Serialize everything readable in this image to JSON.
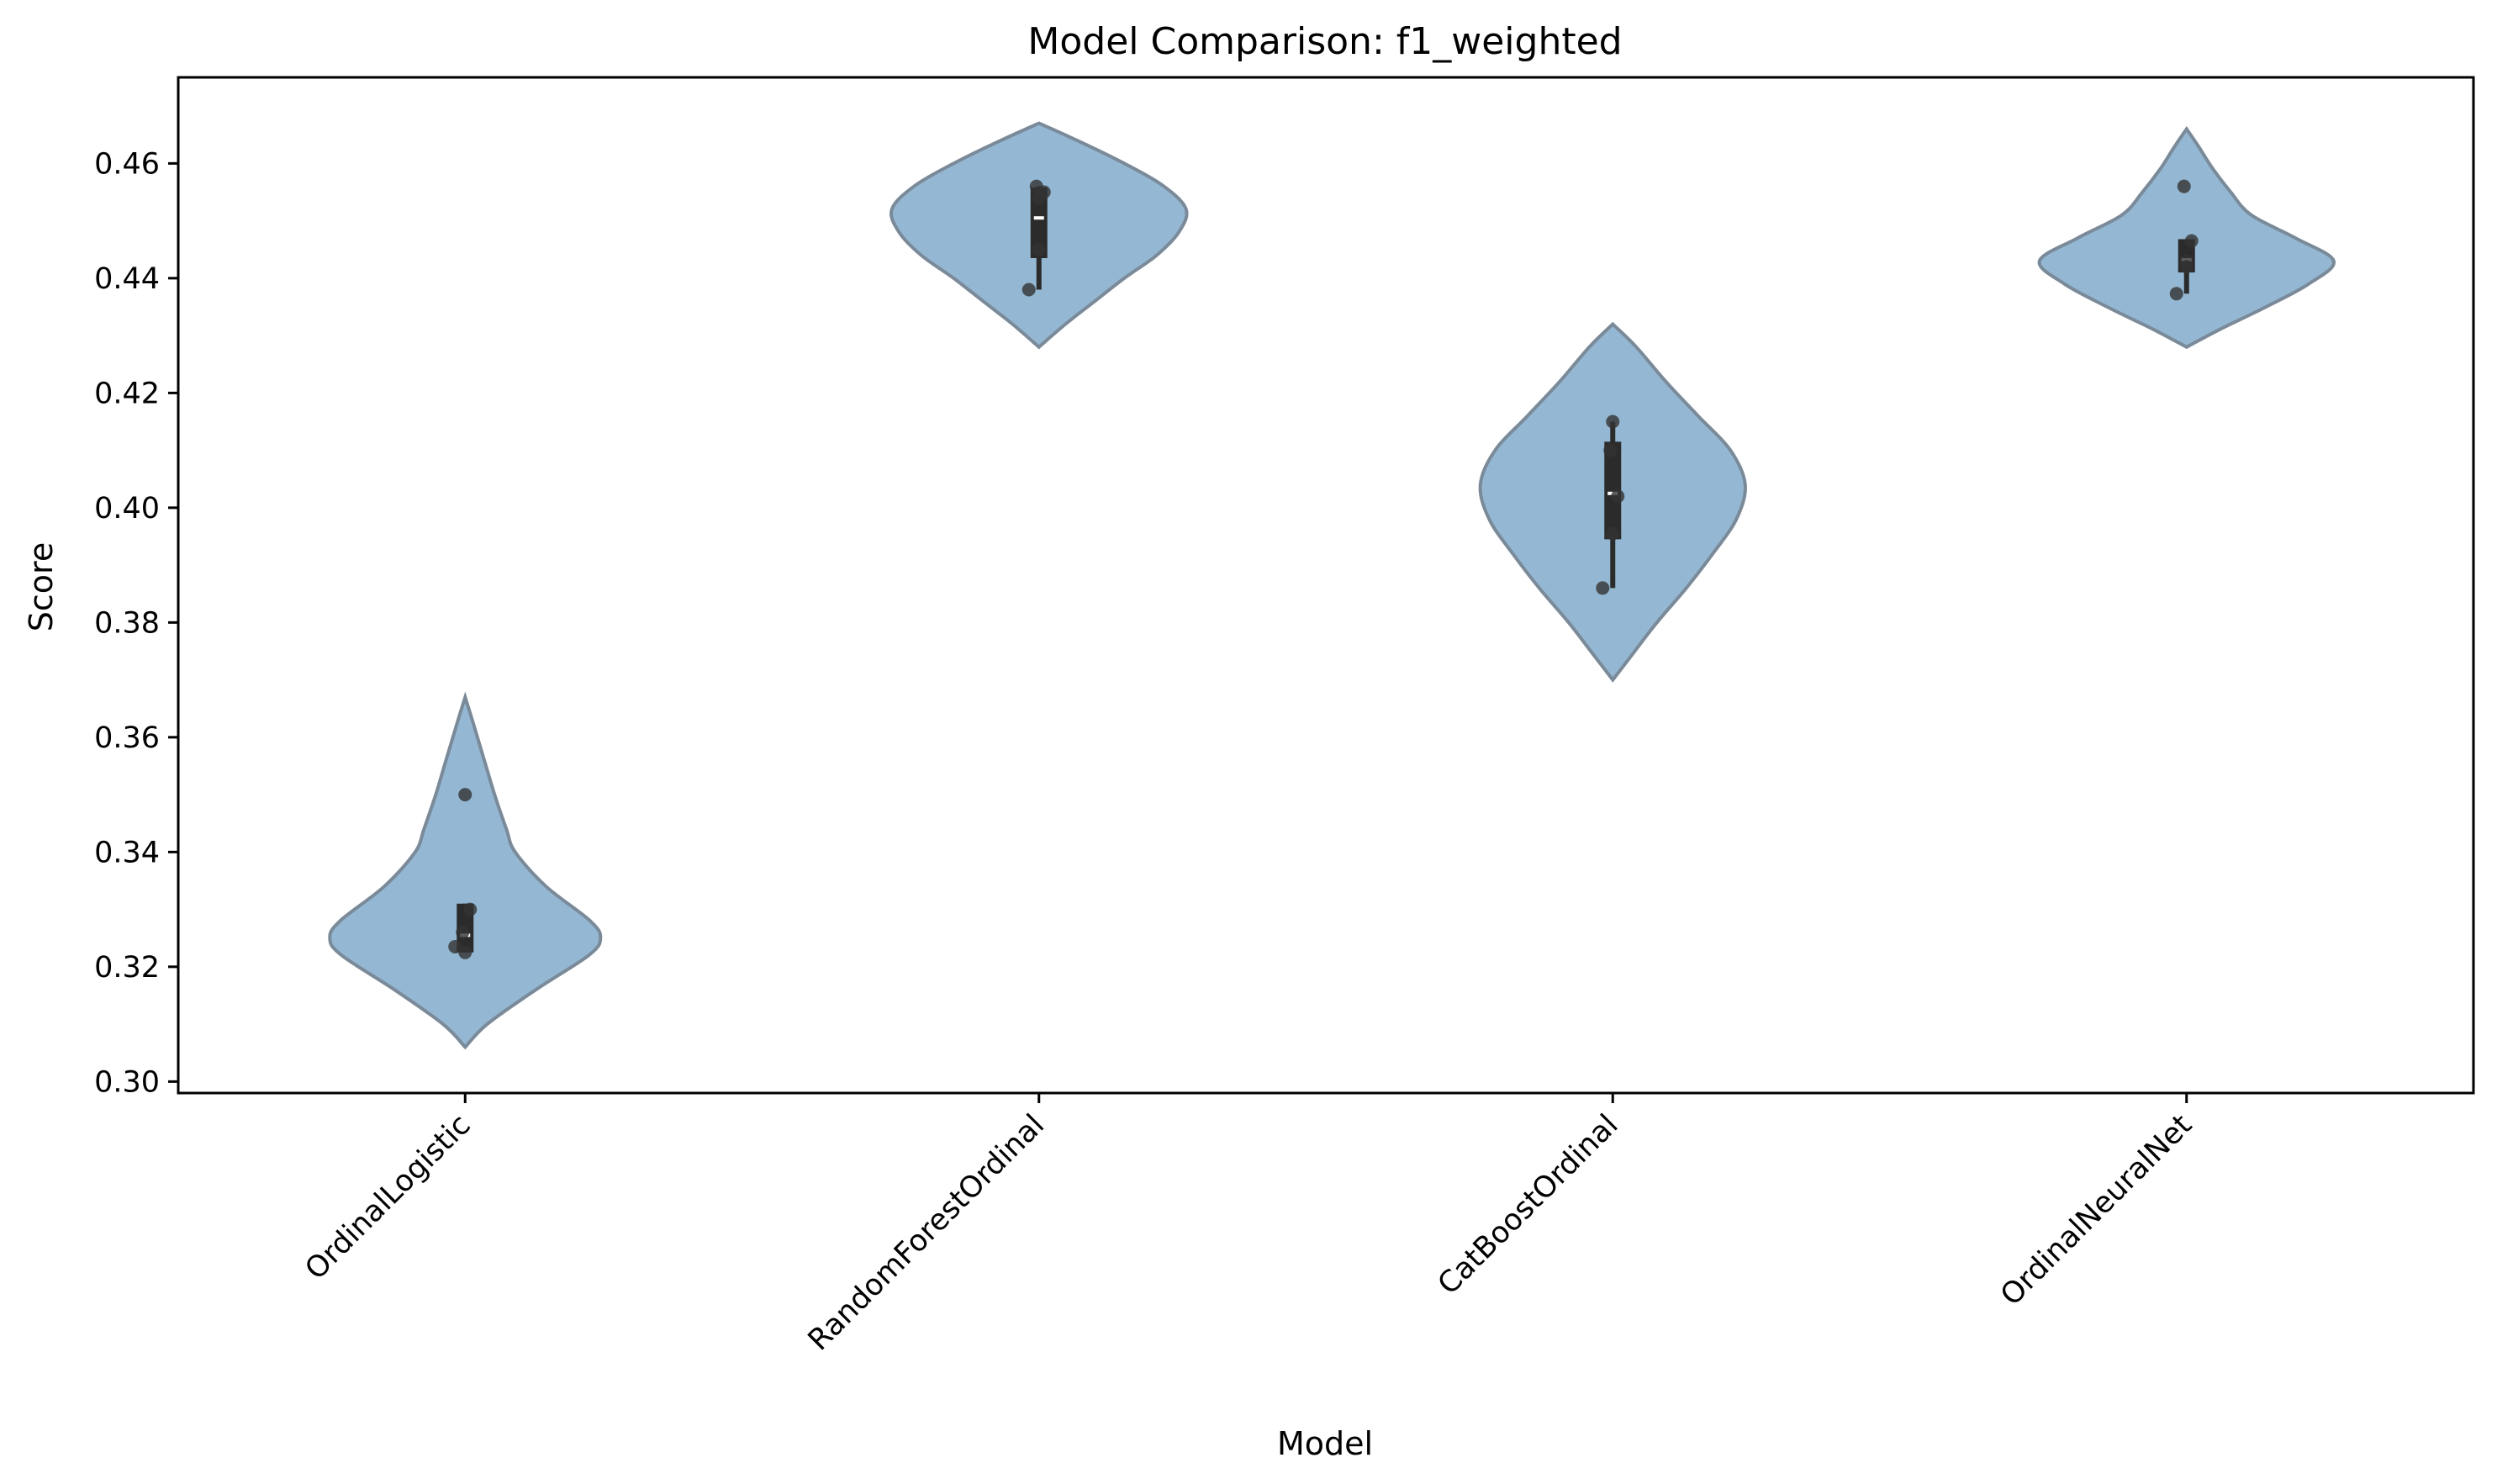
{
  "chart_data": {
    "type": "violin",
    "title": "Model Comparison: f1_weighted",
    "xlabel": "Model",
    "ylabel": "Score",
    "ylim": [
      0.298,
      0.475
    ],
    "yticks": [
      0.3,
      0.32,
      0.34,
      0.36,
      0.38,
      0.4,
      0.42,
      0.44,
      0.46
    ],
    "ytick_labels": [
      "0.30",
      "0.32",
      "0.34",
      "0.36",
      "0.38",
      "0.40",
      "0.42",
      "0.44",
      "0.46"
    ],
    "categories": [
      "OrdinalLogistic",
      "RandomForestOrdinal",
      "CatBoostOrdinal",
      "OrdinalNeuralNet"
    ],
    "violin_color": "#94b8d3",
    "violin_edge_color": "#7a8a99",
    "point_color": "#333333",
    "box_color": "#2b2b2b",
    "series": [
      {
        "category": "OrdinalLogistic",
        "points": [
          0.3235,
          0.3225,
          0.33,
          0.326,
          0.35
        ],
        "median": 0.3255,
        "q1": 0.3225,
        "q3": 0.331,
        "whisker_low": 0.3225,
        "whisker_high": 0.331,
        "density": [
          [
            0.306,
            0.0
          ],
          [
            0.31,
            0.15
          ],
          [
            0.316,
            0.48
          ],
          [
            0.322,
            0.84
          ],
          [
            0.325,
            0.92
          ],
          [
            0.328,
            0.85
          ],
          [
            0.334,
            0.55
          ],
          [
            0.34,
            0.34
          ],
          [
            0.344,
            0.28
          ],
          [
            0.35,
            0.2
          ],
          [
            0.356,
            0.13
          ],
          [
            0.362,
            0.06
          ],
          [
            0.367,
            0.0
          ]
        ]
      },
      {
        "category": "RandomForestOrdinal",
        "points": [
          0.438,
          0.445,
          0.455,
          0.456,
          0.454
        ],
        "median": 0.4505,
        "q1": 0.4435,
        "q3": 0.4558,
        "whisker_low": 0.438,
        "whisker_high": 0.456,
        "density": [
          [
            0.428,
            0.0
          ],
          [
            0.432,
            0.18
          ],
          [
            0.436,
            0.38
          ],
          [
            0.44,
            0.58
          ],
          [
            0.444,
            0.8
          ],
          [
            0.448,
            0.95
          ],
          [
            0.452,
            1.0
          ],
          [
            0.456,
            0.85
          ],
          [
            0.46,
            0.58
          ],
          [
            0.464,
            0.26
          ],
          [
            0.467,
            0.0
          ]
        ]
      },
      {
        "category": "CatBoostOrdinal",
        "points": [
          0.386,
          0.3955,
          0.402,
          0.41,
          0.415
        ],
        "median": 0.4025,
        "q1": 0.3945,
        "q3": 0.4115,
        "whisker_low": 0.386,
        "whisker_high": 0.415,
        "density": [
          [
            0.37,
            0.0
          ],
          [
            0.374,
            0.12
          ],
          [
            0.38,
            0.3
          ],
          [
            0.386,
            0.5
          ],
          [
            0.392,
            0.68
          ],
          [
            0.398,
            0.84
          ],
          [
            0.404,
            0.9
          ],
          [
            0.41,
            0.8
          ],
          [
            0.416,
            0.58
          ],
          [
            0.422,
            0.36
          ],
          [
            0.428,
            0.16
          ],
          [
            0.432,
            0.0
          ]
        ]
      },
      {
        "category": "OrdinalNeuralNet",
        "points": [
          0.4373,
          0.443,
          0.4465,
          0.456,
          0.442
        ],
        "median": 0.4432,
        "q1": 0.441,
        "q3": 0.4468,
        "whisker_low": 0.4373,
        "whisker_high": 0.4468,
        "density": [
          [
            0.428,
            0.0
          ],
          [
            0.431,
            0.22
          ],
          [
            0.435,
            0.54
          ],
          [
            0.439,
            0.83
          ],
          [
            0.443,
            1.0
          ],
          [
            0.447,
            0.74
          ],
          [
            0.451,
            0.44
          ],
          [
            0.455,
            0.3
          ],
          [
            0.459,
            0.18
          ],
          [
            0.463,
            0.08
          ],
          [
            0.466,
            0.0
          ]
        ]
      }
    ]
  }
}
